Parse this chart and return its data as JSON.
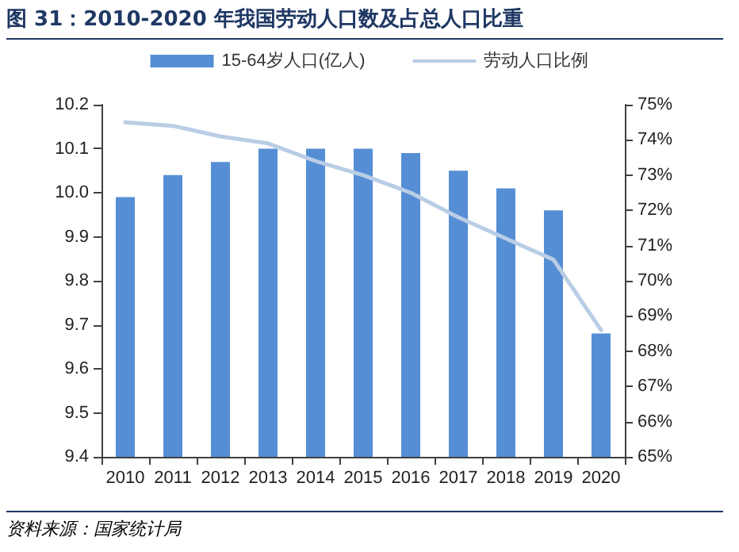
{
  "chart_data": {
    "type": "bar",
    "title": "图 31：2010-2020 年我国劳动人口数及占总人口比重",
    "annotations": [
      "资料来源：国家统计局"
    ],
    "categories": [
      "2010",
      "2011",
      "2012",
      "2013",
      "2014",
      "2015",
      "2016",
      "2017",
      "2018",
      "2019",
      "2020"
    ],
    "series": [
      {
        "name": "15-64岁人口(亿人)",
        "color": "#558ed5",
        "values": [
          9.99,
          10.04,
          10.07,
          10.1,
          10.1,
          10.1,
          10.09,
          10.05,
          10.01,
          9.96,
          9.68
        ]
      },
      {
        "name": "劳动人口比例",
        "type": "line",
        "axis": "y2",
        "color": "#b9cde5",
        "marker": "none",
        "values": [
          74.5,
          74.4,
          74.1,
          73.9,
          73.4,
          73.0,
          72.5,
          71.8,
          71.2,
          70.6,
          68.6
        ]
      }
    ],
    "ylim": [
      9.4,
      10.2
    ],
    "yticks": [
      {
        "value": 9.4,
        "label": "9.4"
      },
      {
        "value": 9.5,
        "label": "9.5"
      },
      {
        "value": 9.6,
        "label": "9.6"
      },
      {
        "value": 9.7,
        "label": "9.7"
      },
      {
        "value": 9.8,
        "label": "9.8"
      },
      {
        "value": 9.9,
        "label": "9.9"
      },
      {
        "value": 10.0,
        "label": "10.0"
      },
      {
        "value": 10.1,
        "label": "10.1"
      },
      {
        "value": 10.2,
        "label": "10.2"
      }
    ],
    "y2lim": [
      65,
      75
    ],
    "y2ticks": [
      {
        "value": 65,
        "label": "65%"
      },
      {
        "value": 66,
        "label": "66%"
      },
      {
        "value": 67,
        "label": "67%"
      },
      {
        "value": 68,
        "label": "68%"
      },
      {
        "value": 69,
        "label": "69%"
      },
      {
        "value": 70,
        "label": "70%"
      },
      {
        "value": 71,
        "label": "71%"
      },
      {
        "value": 72,
        "label": "72%"
      },
      {
        "value": 73,
        "label": "73%"
      },
      {
        "value": 74,
        "label": "74%"
      },
      {
        "value": 75,
        "label": "75%"
      }
    ],
    "grid": false,
    "legend": "top"
  }
}
